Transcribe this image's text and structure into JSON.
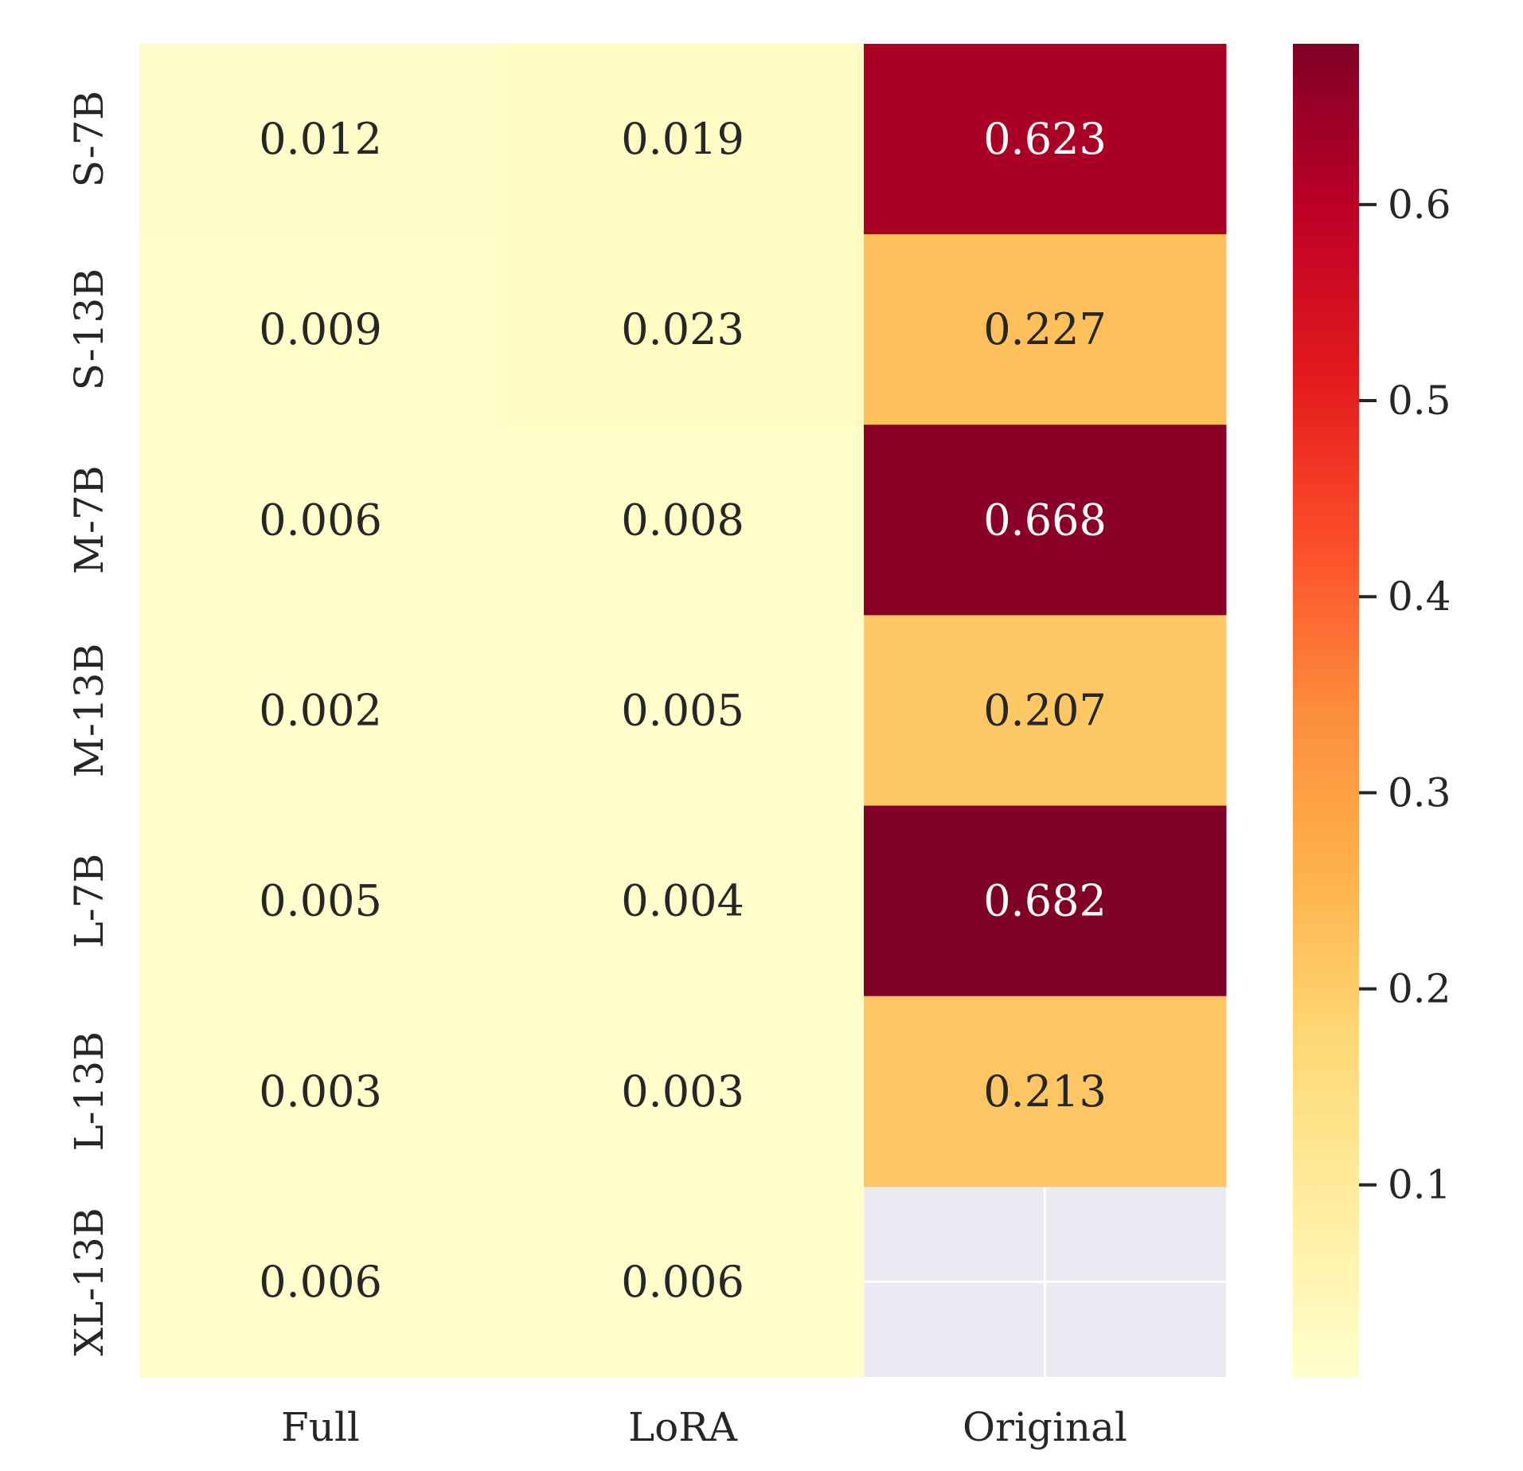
{
  "chart_data": {
    "type": "heatmap",
    "title": "",
    "xlabel": "",
    "ylabel": "",
    "columns": [
      "Full",
      "LoRA",
      "Original"
    ],
    "rows": [
      "S-7B",
      "S-13B",
      "M-7B",
      "M-13B",
      "L-7B",
      "L-13B",
      "XL-13B"
    ],
    "values": [
      [
        0.012,
        0.019,
        0.623
      ],
      [
        0.009,
        0.023,
        0.227
      ],
      [
        0.006,
        0.008,
        0.668
      ],
      [
        0.002,
        0.005,
        0.207
      ],
      [
        0.005,
        0.004,
        0.682
      ],
      [
        0.003,
        0.003,
        0.213
      ],
      [
        0.006,
        0.006,
        null
      ]
    ],
    "labels": [
      [
        "0.012",
        "0.019",
        "0.623"
      ],
      [
        "0.009",
        "0.023",
        "0.227"
      ],
      [
        "0.006",
        "0.008",
        "0.668"
      ],
      [
        "0.002",
        "0.005",
        "0.207"
      ],
      [
        "0.005",
        "0.004",
        "0.682"
      ],
      [
        "0.003",
        "0.003",
        "0.213"
      ],
      [
        "0.006",
        "0.006",
        ""
      ]
    ],
    "colormap": "YlOrRd",
    "vmin": 0.002,
    "vmax": 0.682,
    "colorbar": {
      "ticks": [
        0.1,
        0.2,
        0.3,
        0.4,
        0.5,
        0.6
      ],
      "tick_labels": [
        "0.1",
        "0.2",
        "0.3",
        "0.4",
        "0.5",
        "0.6"
      ]
    },
    "colors": {
      "missing_cell": "#eaeaf2",
      "missing_grid": "#ffffff",
      "text_dark": "#262626",
      "text_light": "#ffffff",
      "tick_color": "#262626"
    }
  }
}
